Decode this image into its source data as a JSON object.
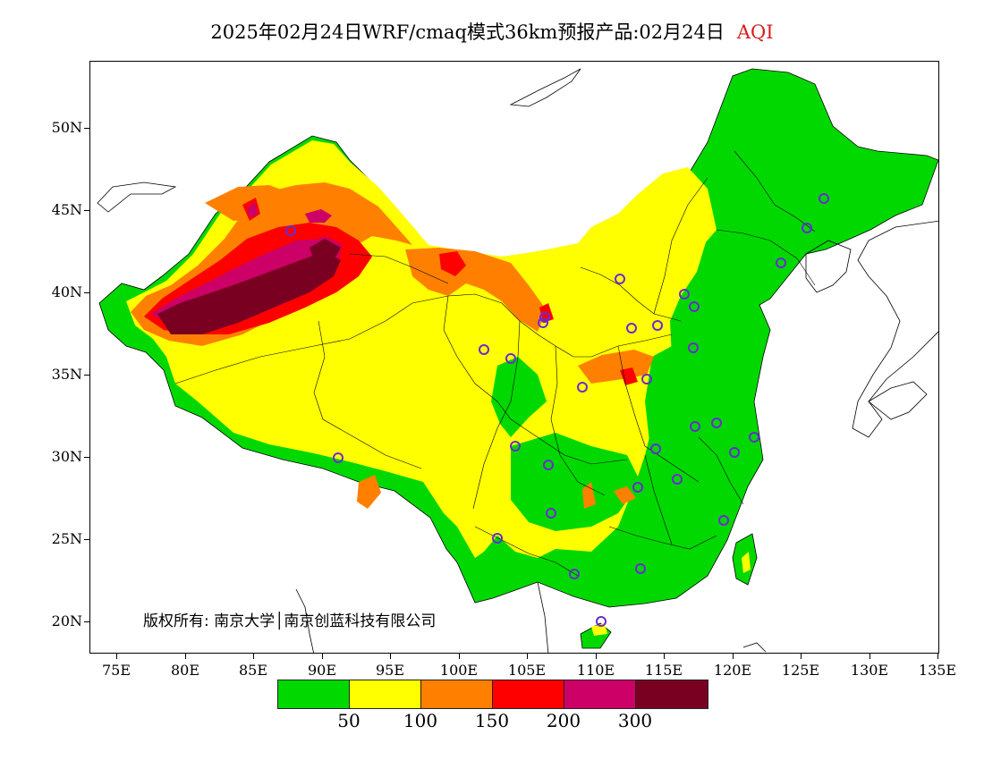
{
  "title": "2025年02月24日WRF/cmaq模式36km预报产品:02月24日",
  "variable": "AQI",
  "variable_color": "#d81e1e",
  "y_axis_labels": [
    "20N",
    "25N",
    "30N",
    "35N",
    "40N",
    "45N",
    "50N"
  ],
  "x_axis_labels": [
    "75E",
    "80E",
    "85E",
    "90E",
    "95E",
    "100E",
    "105E",
    "110E",
    "115E",
    "120E",
    "125E",
    "130E",
    "135E"
  ],
  "copyright": "版权所有: 南京大学│南京创蓝科技有限公司",
  "legend": {
    "colors": [
      "#00d800",
      "#ffff00",
      "#ff8000",
      "#ff0000",
      "#cc0066",
      "#7a0022"
    ],
    "labels": [
      "50",
      "100",
      "150",
      "200",
      "300"
    ]
  }
}
